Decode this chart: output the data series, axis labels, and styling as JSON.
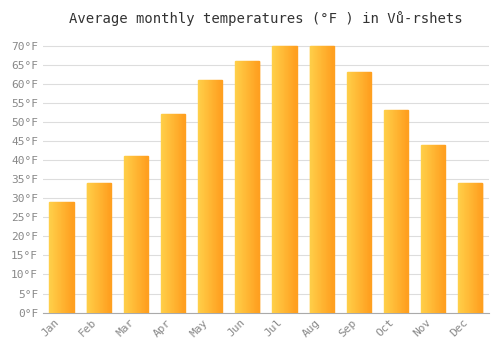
{
  "title": "Average monthly temperatures (°F ) in Vů-rshets",
  "months": [
    "Jan",
    "Feb",
    "Mar",
    "Apr",
    "May",
    "Jun",
    "Jul",
    "Aug",
    "Sep",
    "Oct",
    "Nov",
    "Dec"
  ],
  "values": [
    29,
    34,
    41,
    52,
    61,
    66,
    70,
    70,
    63,
    53,
    44,
    34
  ],
  "bar_color_left": "#FFD04A",
  "bar_color_right": "#FFA020",
  "ylim": [
    0,
    73
  ],
  "yticks": [
    0,
    5,
    10,
    15,
    20,
    25,
    30,
    35,
    40,
    45,
    50,
    55,
    60,
    65,
    70
  ],
  "ylabel_suffix": "°F",
  "background_color": "#FFFFFF",
  "grid_color": "#DDDDDD",
  "title_fontsize": 10,
  "tick_fontsize": 8,
  "tick_color": "#888888",
  "font_family": "monospace"
}
